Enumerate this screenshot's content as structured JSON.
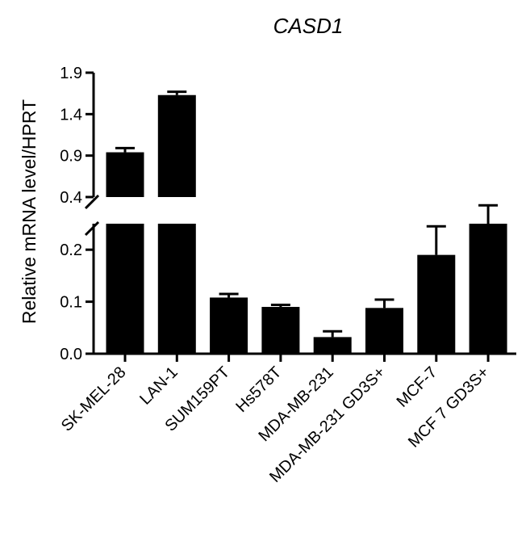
{
  "chart_data": {
    "type": "bar",
    "title": "CASD1",
    "xlabel": "",
    "ylabel": "Relative mRNA level/HPRT",
    "axis_break": {
      "lower_ylim": [
        0,
        0.25
      ],
      "upper_ylim": [
        0.4,
        1.9
      ]
    },
    "upper_ticks": [
      {
        "value": 0.4,
        "label": "0.4"
      },
      {
        "value": 0.9,
        "label": "0.9"
      },
      {
        "value": 1.4,
        "label": "1.4"
      },
      {
        "value": 1.9,
        "label": "1.9"
      }
    ],
    "lower_ticks": [
      {
        "value": 0.0,
        "label": "0.0"
      },
      {
        "value": 0.1,
        "label": "0.1"
      },
      {
        "value": 0.2,
        "label": "0.2"
      }
    ],
    "categories": [
      "SK-MEL-28",
      "LAN-1",
      "SUM159PT",
      "Hs578T",
      "MDA-MB-231",
      "MDA-MB-231 GD3S+",
      "MCF-7",
      "MCF 7 GD3S+"
    ],
    "values": [
      0.94,
      1.63,
      0.108,
      0.09,
      0.032,
      0.088,
      0.19,
      0.25
    ],
    "errors": [
      0.05,
      0.04,
      0.007,
      0.004,
      0.011,
      0.016,
      0.055,
      0.05
    ],
    "grid": false,
    "legend": "none",
    "colors": {
      "bar": "#000000",
      "axis": "#000000"
    }
  }
}
